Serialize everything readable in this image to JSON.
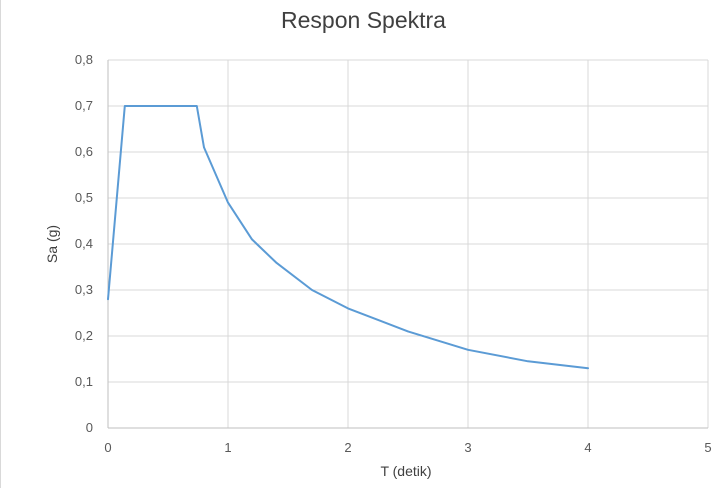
{
  "chart_data": {
    "type": "line",
    "title": "Respon Spektra",
    "xlabel": "T (detik)",
    "ylabel": "Sa (g)",
    "xlim": [
      0,
      5
    ],
    "ylim": [
      0,
      0.8
    ],
    "x_ticks": [
      "0",
      "1",
      "2",
      "3",
      "4",
      "5"
    ],
    "y_ticks": [
      "0",
      "0,1",
      "0,2",
      "0,3",
      "0,4",
      "0,5",
      "0,6",
      "0,7",
      "0,8"
    ],
    "grid": true,
    "legend": "none",
    "series": [
      {
        "color": "#5b9bd5",
        "x": [
          0,
          0.14,
          0.74,
          0.8,
          0.9,
          1.0,
          1.2,
          1.4,
          1.7,
          2.0,
          2.5,
          3.0,
          3.5,
          4.0
        ],
        "y": [
          0.28,
          0.7,
          0.7,
          0.61,
          0.55,
          0.49,
          0.41,
          0.36,
          0.3,
          0.26,
          0.21,
          0.17,
          0.145,
          0.13
        ]
      }
    ]
  },
  "colors": {
    "grid": "#d9d9d9",
    "axis": "#bfbfbf"
  }
}
